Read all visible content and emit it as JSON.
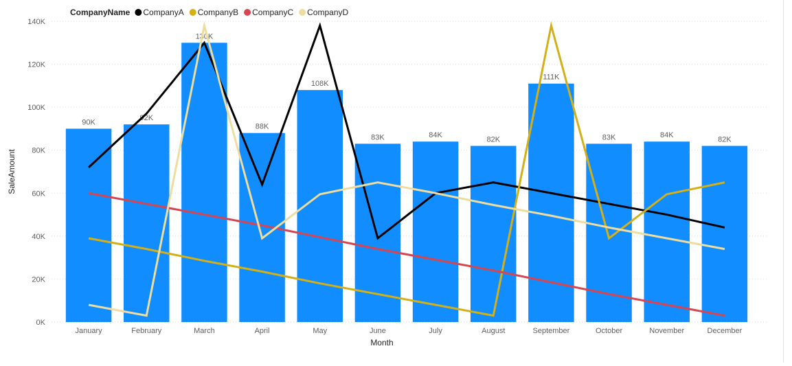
{
  "chart_data": {
    "type": "bar",
    "legend": {
      "title": "CompanyName",
      "position": "top-left"
    },
    "xlabel": "Month",
    "ylabel": "SaleAmount",
    "ylim": [
      0,
      140000
    ],
    "y_ticks": [
      0,
      20000,
      40000,
      60000,
      80000,
      100000,
      120000,
      140000
    ],
    "y_tick_labels": [
      "0K",
      "20K",
      "40K",
      "60K",
      "80K",
      "100K",
      "120K",
      "140K"
    ],
    "grid": true,
    "categories": [
      "January",
      "February",
      "March",
      "April",
      "May",
      "June",
      "July",
      "August",
      "September",
      "October",
      "November",
      "December"
    ],
    "bar_series": {
      "values": [
        90000,
        92000,
        130000,
        88000,
        108000,
        83000,
        84000,
        82000,
        111000,
        83000,
        84000,
        82000
      ],
      "data_labels": [
        "90K",
        "92K",
        "130K",
        "88K",
        "108K",
        "83K",
        "84K",
        "82K",
        "111K",
        "83K",
        "84K",
        "82K"
      ],
      "color": "#118dff"
    },
    "line_series": [
      {
        "name": "CompanyA",
        "color": "#000000",
        "values": [
          72000,
          97000,
          130000,
          64000,
          138000,
          39000,
          60000,
          65000,
          60000,
          55000,
          50000,
          44000
        ]
      },
      {
        "name": "CompanyB",
        "color": "#d4b016",
        "values": [
          39000,
          34000,
          28500,
          23500,
          18000,
          13000,
          8000,
          3000,
          138000,
          39000,
          59500,
          65000
        ]
      },
      {
        "name": "CompanyC",
        "color": "#d64550",
        "values": [
          60000,
          55000,
          50000,
          45000,
          39500,
          34000,
          29000,
          24000,
          18500,
          13000,
          8000,
          3000
        ]
      },
      {
        "name": "CompanyD",
        "color": "#eedd9f",
        "values": [
          8000,
          3000,
          138000,
          39000,
          59500,
          65000,
          60000,
          54500,
          49500,
          44000,
          39000,
          34000
        ]
      }
    ]
  }
}
